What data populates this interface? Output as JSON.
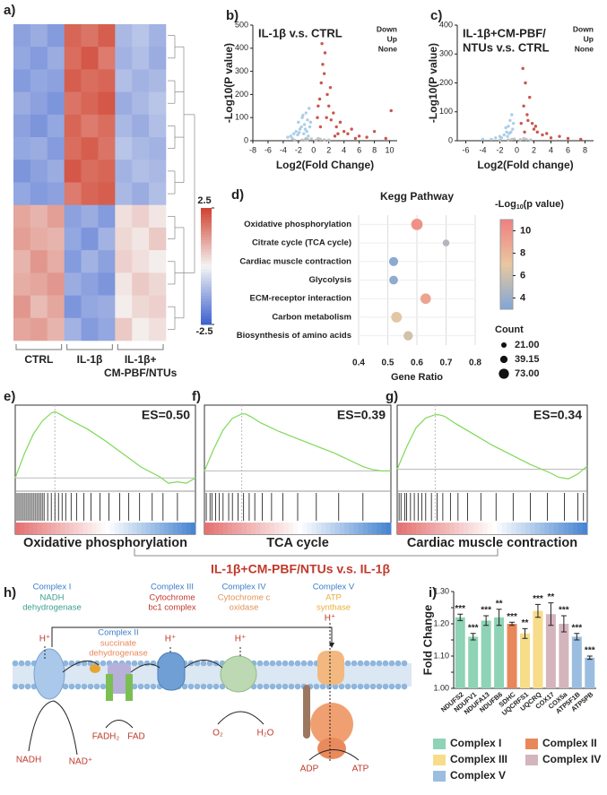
{
  "panel_labels": [
    "a)",
    "b)",
    "c)",
    "d)",
    "e)",
    "f)",
    "g)",
    "h)",
    "i)"
  ],
  "comparison": "IL-1β+CM-PBF/NTUs v.s. IL-1β",
  "chart_data": [
    {
      "type": "heatmap",
      "groups": [
        {
          "lines": [
            "CTRL"
          ],
          "color": "#111111"
        },
        {
          "lines": [
            "IL-1β"
          ],
          "color": "#111111"
        },
        {
          "lines": [
            "IL-1β+",
            "CM-PBF/NTUs"
          ],
          "color": "#c0392b"
        }
      ],
      "zlim": [
        -2.5,
        2.5
      ],
      "zticks": [
        2.5,
        -2.5
      ],
      "values": [
        [
          -1.4,
          -1.2,
          -1.5,
          2.0,
          1.8,
          2.1,
          -1.0,
          -0.8,
          -1.1
        ],
        [
          -1.3,
          -1.5,
          -1.2,
          1.9,
          2.2,
          1.7,
          -1.1,
          -0.9,
          -1.2
        ],
        [
          -1.5,
          -1.3,
          -1.4,
          2.1,
          1.9,
          2.0,
          -0.9,
          -1.1,
          -1.0
        ],
        [
          -1.2,
          -1.4,
          -1.6,
          1.8,
          2.0,
          2.2,
          -1.2,
          -1.0,
          -0.8
        ],
        [
          -1.4,
          -1.6,
          -1.3,
          2.0,
          1.7,
          1.9,
          -1.0,
          -1.2,
          -0.9
        ],
        [
          -1.3,
          -1.2,
          -1.5,
          1.9,
          2.1,
          1.8,
          -0.8,
          -1.0,
          -1.1
        ],
        [
          -1.6,
          -1.4,
          -1.2,
          2.2,
          1.9,
          2.0,
          -1.1,
          -0.9,
          -1.0
        ],
        [
          -1.3,
          -1.5,
          -1.4,
          1.7,
          2.0,
          2.1,
          -1.0,
          -1.2,
          -0.9
        ],
        [
          1.1,
          0.9,
          1.2,
          -1.4,
          -1.2,
          -1.5,
          0.3,
          0.5,
          0.2
        ],
        [
          1.2,
          1.0,
          0.9,
          -1.3,
          -1.6,
          -1.1,
          0.4,
          0.2,
          0.6
        ],
        [
          0.9,
          1.3,
          1.0,
          -1.5,
          -1.1,
          -1.4,
          0.5,
          0.3,
          0.1
        ],
        [
          1.0,
          1.1,
          1.3,
          -1.2,
          -1.4,
          -1.6,
          0.2,
          0.6,
          0.4
        ],
        [
          1.3,
          0.8,
          1.1,
          -1.6,
          -1.3,
          -1.2,
          0.1,
          0.4,
          0.5
        ],
        [
          1.1,
          1.2,
          0.9,
          -1.1,
          -1.5,
          -1.3,
          0.6,
          0.1,
          0.3
        ]
      ]
    },
    {
      "type": "volcano",
      "title": [
        "IL-1β v.s. CTRL"
      ],
      "xlabel": "Log2(Fold Change)",
      "ylabel": "-Log10(P value)",
      "xlim": [
        -8,
        11
      ],
      "xticks": [
        -8,
        -6,
        -4,
        -2,
        0,
        2,
        4,
        6,
        8,
        10
      ],
      "ylim": [
        0,
        500
      ],
      "yticks": [
        0,
        100,
        200,
        300,
        400,
        500
      ],
      "series": [
        {
          "name": "Down",
          "color": "#9ec5e3",
          "x": [
            -0.5,
            -0.8,
            -1.0,
            -1.2,
            -1.5,
            -1.8,
            -2.0,
            -2.3,
            -2.6,
            -3.0,
            -3.4,
            -0.6,
            -0.9,
            -1.3,
            -1.6,
            -2.1,
            -0.7,
            -1.1,
            -1.4,
            -2.8,
            -0.4,
            -1.9,
            -1.0,
            -0.8
          ],
          "y": [
            60,
            90,
            120,
            70,
            100,
            50,
            80,
            40,
            30,
            20,
            15,
            140,
            40,
            30,
            60,
            25,
            20,
            50,
            110,
            10,
            80,
            35,
            10,
            5
          ]
        },
        {
          "name": "Up",
          "color": "#c0392b",
          "x": [
            0.5,
            0.8,
            1.0,
            1.2,
            1.5,
            1.8,
            2.0,
            2.3,
            2.6,
            3.0,
            3.5,
            4.0,
            4.5,
            5.0,
            6.0,
            7.0,
            8.0,
            9.5,
            10.2,
            1.1,
            1.4,
            2.2,
            0.9,
            3.2,
            1.7,
            2.8,
            5.5,
            0.6
          ],
          "y": [
            100,
            180,
            250,
            330,
            380,
            200,
            150,
            90,
            120,
            60,
            80,
            40,
            30,
            50,
            20,
            15,
            40,
            10,
            130,
            420,
            290,
            230,
            60,
            30,
            100,
            20,
            10,
            150
          ]
        },
        {
          "name": "None",
          "color": "#bbbbbb",
          "x": [
            -1.5,
            -0.8,
            0.3,
            0.9,
            1.4,
            -0.3,
            2.0,
            -2.5,
            0.6,
            -1.1
          ],
          "y": [
            3,
            5,
            2,
            6,
            4,
            8,
            3,
            2,
            10,
            4
          ]
        }
      ]
    },
    {
      "type": "volcano",
      "title": [
        "IL-1β+CM-PBF/",
        "NTUs v.s. CTRL"
      ],
      "xlabel": "Log2(Fold change)",
      "ylabel": "-Log10(P value)",
      "xlim": [
        -7,
        9
      ],
      "xticks": [
        -6,
        -4,
        -2,
        0,
        2,
        4,
        6,
        8
      ],
      "ylim": [
        0,
        400
      ],
      "yticks": [
        0,
        100,
        200,
        300,
        400
      ],
      "series": [
        {
          "name": "Down",
          "color": "#9ec5e3",
          "x": [
            -0.5,
            -0.8,
            -1.0,
            -1.2,
            -1.5,
            -2.0,
            -2.5,
            -3.0,
            -0.6,
            -0.9,
            -1.3,
            -1.8,
            -0.4,
            -4.0,
            -0.7,
            -1.1
          ],
          "y": [
            40,
            70,
            50,
            30,
            20,
            15,
            10,
            5,
            90,
            25,
            45,
            10,
            60,
            5,
            30,
            15
          ]
        },
        {
          "name": "Up",
          "color": "#c0392b",
          "x": [
            0.5,
            0.8,
            1.0,
            1.2,
            1.5,
            1.8,
            2.0,
            2.4,
            3.0,
            3.5,
            4.0,
            5.0,
            6.0,
            0.7,
            1.3,
            0.9,
            2.2,
            7.5
          ],
          "y": [
            60,
            120,
            200,
            90,
            150,
            60,
            40,
            30,
            20,
            25,
            10,
            15,
            8,
            250,
            70,
            30,
            50,
            5
          ]
        },
        {
          "name": "None",
          "color": "#bbbbbb",
          "x": [
            -1.0,
            -0.3,
            0.4,
            1.1,
            -2.0,
            0.8,
            1.6,
            -0.6
          ],
          "y": [
            3,
            6,
            4,
            5,
            2,
            8,
            3,
            5
          ]
        }
      ]
    },
    {
      "type": "dot",
      "title": "Kegg Pathway",
      "xlabel": "Gene Ratio",
      "categories": [
        "Oxidative phosphorylation",
        "Citrate cycle (TCA cycle)",
        "Cardiac muscle contraction",
        "Glycolysis",
        "ECM-receptor interaction",
        "Carbon metabolism",
        "Biosynthesis of amino acids"
      ],
      "x": [
        0.6,
        0.7,
        0.52,
        0.52,
        0.63,
        0.53,
        0.57
      ],
      "color_values": [
        10,
        5,
        3.5,
        3.6,
        9,
        6.8,
        6.2
      ],
      "sizes": [
        60,
        21,
        38,
        35,
        50,
        52,
        40
      ],
      "xlim": [
        0.4,
        0.8
      ],
      "xticks": [
        0.4,
        0.5,
        0.6,
        0.7,
        0.8
      ],
      "clim": [
        3,
        11
      ],
      "cticks": [
        4,
        6,
        8,
        10
      ],
      "colors": [
        "#7ea6d8",
        "#e8c8a0",
        "#f08080"
      ],
      "colorbar_label": [
        "-Log",
        "10",
        "(p value)"
      ],
      "size_label": "Count",
      "size_ticks": [
        {
          "value": 21,
          "label": "21.00"
        },
        39.15,
        {
          "value": 73,
          "label": "73.00"
        }
      ]
    },
    {
      "type": "gsea",
      "label": "Oxidative phosphorylation",
      "es_label": "ES=0.50",
      "xlim": [
        0,
        100
      ],
      "ylim": [
        -0.08,
        0.55
      ],
      "x": [
        0,
        5,
        10,
        15,
        20,
        22,
        25,
        30,
        40,
        50,
        60,
        70,
        80,
        85,
        90,
        95,
        100
      ],
      "values": [
        0,
        0.18,
        0.33,
        0.43,
        0.49,
        0.5,
        0.48,
        0.44,
        0.37,
        0.28,
        0.18,
        0.08,
        0.01,
        -0.04,
        -0.03,
        -0.04,
        0
      ],
      "hits": [
        1,
        2,
        3,
        4,
        5,
        6,
        7,
        8,
        9,
        10,
        11,
        12,
        13,
        14,
        15,
        16,
        18,
        20,
        22,
        24,
        26,
        28,
        31,
        34,
        38,
        42,
        47,
        52,
        58,
        63,
        69,
        76,
        82,
        90
      ]
    },
    {
      "type": "gsea",
      "label": "TCA cycle",
      "es_label": "ES=0.39",
      "xlim": [
        0,
        100
      ],
      "ylim": [
        -0.12,
        0.45
      ],
      "x": [
        0,
        5,
        10,
        15,
        20,
        22,
        25,
        30,
        40,
        50,
        60,
        70,
        80,
        85,
        90,
        95,
        100
      ],
      "values": [
        0,
        0.15,
        0.28,
        0.36,
        0.39,
        0.39,
        0.37,
        0.33,
        0.27,
        0.22,
        0.17,
        0.12,
        0.06,
        0.03,
        0.01,
        0,
        0
      ],
      "hits": [
        1,
        3,
        4,
        6,
        8,
        10,
        13,
        15,
        18,
        21,
        24,
        27,
        31,
        36,
        42,
        50,
        60,
        72,
        85
      ]
    },
    {
      "type": "gsea",
      "label": "Cardiac muscle contraction",
      "es_label": "ES=0.34",
      "xlim": [
        0,
        100
      ],
      "ylim": [
        -0.12,
        0.4
      ],
      "x": [
        0,
        5,
        10,
        15,
        20,
        22,
        25,
        30,
        40,
        50,
        60,
        70,
        80,
        85,
        90,
        95,
        100
      ],
      "values": [
        0,
        0.14,
        0.26,
        0.32,
        0.34,
        0.34,
        0.33,
        0.29,
        0.22,
        0.15,
        0.09,
        0.03,
        -0.02,
        -0.05,
        -0.06,
        -0.03,
        0.02
      ],
      "hits": [
        1,
        2,
        4,
        5,
        7,
        9,
        11,
        13,
        15,
        18,
        21,
        24,
        28,
        32,
        37,
        44,
        52,
        61,
        70,
        79,
        88,
        95,
        98
      ]
    },
    {
      "type": "bar",
      "ylabel": "Fold Change",
      "ylim": [
        1,
        1.3
      ],
      "yticks": [
        {
          "value": 1,
          "label": "1.00"
        },
        1.05,
        {
          "value": 1.1,
          "label": "1.10"
        },
        1.15,
        {
          "value": 1.2,
          "label": "1.20"
        },
        1.25,
        {
          "value": 1.3,
          "label": "1.30"
        }
      ],
      "series": [
        {
          "name": "Complex I",
          "color": "#8fd3b6",
          "categories": [
            "NDUFS2",
            "NDUFV1",
            "NDUFA13",
            "NDUFB6"
          ],
          "values": [
            1.22,
            1.16,
            1.21,
            1.22
          ],
          "errors": [
            0.01,
            0.01,
            0.015,
            0.025
          ],
          "significance": [
            "***",
            "***",
            "***",
            "**"
          ]
        },
        {
          "name": "Complex II",
          "color": "#e8875a",
          "categories": [
            "SDHC"
          ],
          "values": [
            1.2
          ],
          "errors": [
            0.005
          ],
          "significance": [
            "***"
          ]
        },
        {
          "name": "Complex III",
          "color": "#f7dc8a",
          "categories": [
            "UQCRFS1",
            "UQCRQ"
          ],
          "values": [
            1.17,
            1.24
          ],
          "errors": [
            0.015,
            0.02
          ],
          "significance": [
            "**",
            "***"
          ]
        },
        {
          "name": "Complex IV",
          "color": "#d4b5be",
          "categories": [
            "COX17",
            "COX5a"
          ],
          "values": [
            1.23,
            1.2
          ],
          "errors": [
            0.035,
            0.025
          ],
          "significance": [
            "**",
            "***"
          ]
        },
        {
          "name": "Complex V",
          "color": "#9bbde0",
          "categories": [
            "ATP5F1B",
            "ATP5PB"
          ],
          "values": [
            1.16,
            1.095
          ],
          "errors": [
            0.01,
            0.005
          ],
          "significance": [
            "***",
            "***"
          ]
        }
      ]
    }
  ],
  "diagram": {
    "complexes": [
      {
        "title": "Complex I",
        "name": [
          "NADH",
          "dehydrogenase"
        ]
      },
      {
        "title": "Complex II",
        "name": [
          "succinate",
          "dehydrogenase"
        ]
      },
      {
        "title": "Complex III",
        "name": [
          "Cytochrome",
          "bc1 complex"
        ]
      },
      {
        "title": "Complex IV",
        "name": [
          "Cytochrome c",
          "oxidase"
        ]
      },
      {
        "title": "Complex V",
        "name": [
          "ATP",
          "synthase"
        ]
      }
    ],
    "protons": [
      "H⁺",
      "H⁺",
      "H⁺",
      "H⁺"
    ],
    "molecules": [
      "NADH",
      "NAD⁺",
      "FADH₂",
      "FAD",
      "O₂",
      "H₂O",
      "ADP",
      "ATP"
    ]
  }
}
